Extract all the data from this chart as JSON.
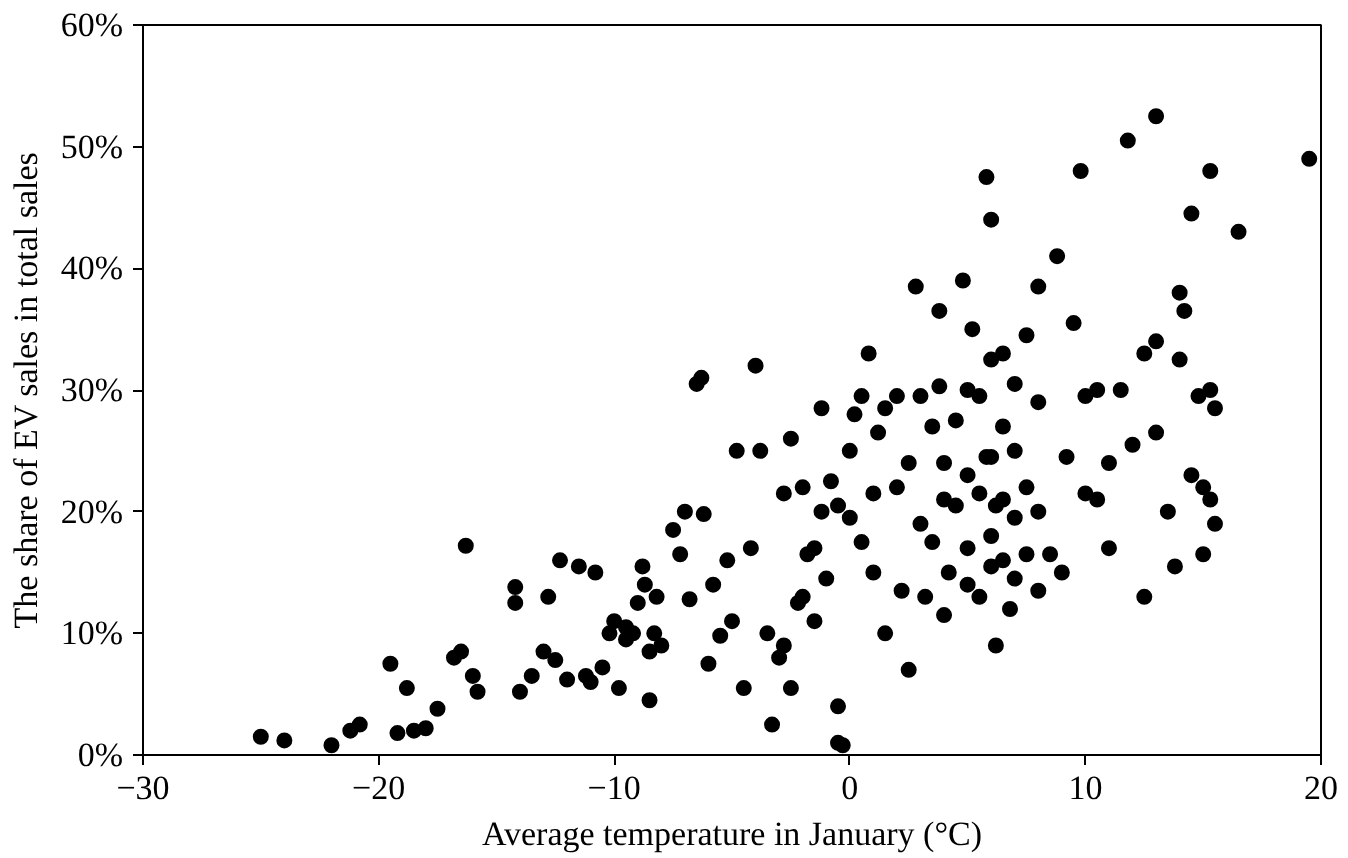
{
  "chart_data": {
    "type": "scatter",
    "xlabel": "Average temperature in January (°C)",
    "ylabel": "The share of EV sales in total sales",
    "xlim": [
      -30,
      20
    ],
    "xticks": [
      -30,
      -20,
      -10,
      0,
      10,
      20
    ],
    "ylim": [
      0,
      60
    ],
    "yticks": [
      {
        "value": 0,
        "label": "0%"
      },
      {
        "value": 10,
        "label": "10%"
      },
      {
        "value": 20,
        "label": "20%"
      },
      {
        "value": 30,
        "label": "30%"
      },
      {
        "value": 40,
        "label": "40%"
      },
      {
        "value": 50,
        "label": "50%"
      },
      {
        "value": 60,
        "label": "60%"
      }
    ],
    "grid": false,
    "marker": "circle",
    "series": [
      {
        "color": "#000000",
        "x": [
          -25,
          -24,
          -22,
          -21.2,
          -20.8,
          -19.5,
          -19.2,
          -18.8,
          -18.5,
          -18,
          -17.5,
          -16.8,
          -16.5,
          -16.3,
          -16,
          -15.8,
          -14.2,
          -14.2,
          -14,
          -13.5,
          -13,
          -12.8,
          -12.5,
          -12.3,
          -12,
          -11.5,
          -11.2,
          -11,
          -10.8,
          -10.5,
          -10.2,
          -10,
          -9.8,
          -9.5,
          -9.5,
          -9.2,
          -9,
          -8.8,
          -8.7,
          -8.5,
          -8.5,
          -8.3,
          -8.2,
          -8,
          -7.5,
          -7.2,
          -7,
          -6.8,
          -6.5,
          -6.3,
          -6.2,
          -6,
          -5.8,
          -5.5,
          -5.2,
          -5,
          -4.8,
          -4.5,
          -4.2,
          -4,
          -3.8,
          -3.5,
          -3.3,
          -3,
          -2.8,
          -2.8,
          -2.5,
          -2.5,
          -2.2,
          -2,
          -2,
          -1.8,
          -1.5,
          -1.5,
          -1.2,
          -1.2,
          -1,
          -0.8,
          -0.5,
          -0.5,
          -0.3,
          -0.5,
          0,
          0,
          0.2,
          0.5,
          0.5,
          0.8,
          1,
          1,
          1.2,
          1.5,
          1.5,
          2,
          2,
          2.2,
          2.5,
          2.5,
          2.8,
          3,
          3,
          3.2,
          3.5,
          3.5,
          3.8,
          4,
          4,
          4,
          4.2,
          4.5,
          4.5,
          4.8,
          5,
          5,
          5,
          5,
          5.2,
          5.5,
          5.5,
          5.5,
          5.8,
          6,
          6,
          6,
          6,
          6,
          6.2,
          6.5,
          6.5,
          6.5,
          6.8,
          7,
          7,
          7,
          7,
          7.5,
          7.5,
          7.5,
          8,
          8,
          8,
          8,
          8.5,
          8.8,
          9,
          9.2,
          9.5,
          9.8,
          10,
          10,
          10.5,
          10.5,
          11,
          11,
          11.5,
          11.8,
          12,
          12.5,
          12.5,
          13,
          13,
          13,
          13.5,
          13.8,
          14,
          14,
          14.2,
          14.5,
          14.5,
          14.8,
          15,
          15.3,
          15.3,
          15.5,
          15.5,
          16.5,
          19.5,
          15,
          15.3,
          6.5,
          3.8,
          5.8,
          6.2
        ],
        "values": [
          1.5,
          1.2,
          0.8,
          2,
          2.5,
          7.5,
          1.8,
          5.5,
          2,
          2.2,
          3.8,
          8,
          8.5,
          17.2,
          6.5,
          5.2,
          13.8,
          12.5,
          5.2,
          6.5,
          8.5,
          13,
          7.8,
          16,
          6.2,
          15.5,
          6.5,
          6,
          15,
          7.2,
          10,
          11,
          5.5,
          9.5,
          10.5,
          10,
          12.5,
          15.5,
          14,
          8.5,
          4.5,
          10,
          13,
          9,
          18.5,
          16.5,
          20,
          12.8,
          30.5,
          31,
          19.8,
          7.5,
          14,
          9.8,
          16,
          11,
          25,
          5.5,
          17,
          32,
          25,
          10,
          2.5,
          8,
          21.5,
          9,
          26,
          5.5,
          12.5,
          22,
          13,
          16.5,
          17,
          11,
          28.5,
          20,
          14.5,
          22.5,
          1,
          4,
          0.8,
          20.5,
          19.5,
          25,
          28,
          29.5,
          17.5,
          33,
          21.5,
          15,
          26.5,
          10,
          28.5,
          29.5,
          22,
          13.5,
          24,
          7,
          38.5,
          29.5,
          19,
          13,
          27,
          17.5,
          36.5,
          24,
          21,
          11.5,
          15,
          27.5,
          20.5,
          39,
          30,
          23,
          17,
          14,
          35,
          29.5,
          21.5,
          13,
          47.5,
          44,
          32.5,
          24.5,
          18,
          15.5,
          9,
          27,
          21,
          16,
          12,
          30.5,
          25,
          19.5,
          14.5,
          34.5,
          22,
          16.5,
          38.5,
          29,
          20,
          13.5,
          16.5,
          41,
          15,
          24.5,
          35.5,
          48,
          29.5,
          21.5,
          30,
          21,
          24,
          17,
          30,
          50.5,
          25.5,
          33,
          13,
          52.5,
          34,
          26.5,
          20,
          15.5,
          38,
          32.5,
          36.5,
          44.5,
          23,
          29.5,
          16.5,
          48,
          30,
          19,
          28.5,
          43,
          49,
          22,
          21,
          33,
          30.3,
          24.5,
          20.5
        ]
      }
    ]
  }
}
